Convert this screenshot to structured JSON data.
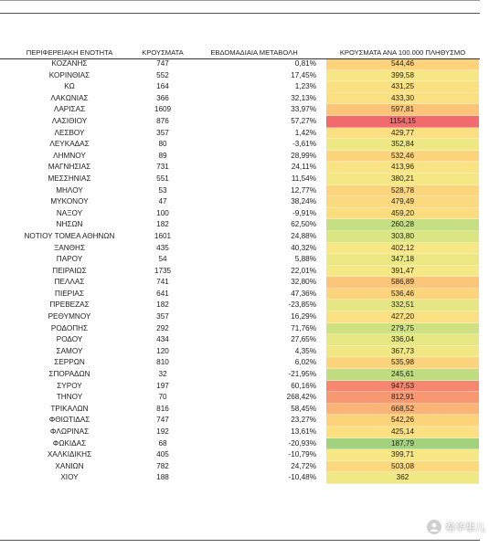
{
  "headers": {
    "region": "ΠΕΡΙΦΕΡΕΙΑΚΗ ΕΝΟΤΗΤΑ",
    "cases": "ΚΡΟΥΣΜΑΤΑ",
    "weekly_change": "ΕΒΔΟΜΑΔΙΑΙΑ ΜΕΤΑΒΟΛΗ",
    "per100k": "ΚΡΟΥΣΜΑΤΑ ΑΝΑ 100.000 ΠΛΗΘΥΣΜΟ"
  },
  "rows": [
    {
      "region": "ΚΟΖΑΝΗΣ",
      "cases": "747",
      "change": "0,81%",
      "per100k": "544,46",
      "color": "#fcd27b"
    },
    {
      "region": "ΚΟΡΙΝΘΙΑΣ",
      "cases": "552",
      "change": "17,45%",
      "per100k": "399,58",
      "color": "#f8e785"
    },
    {
      "region": "ΚΩ",
      "cases": "164",
      "change": "1,23%",
      "per100k": "431,25",
      "color": "#fae081"
    },
    {
      "region": "ΛΑΚΩΝΙΑΣ",
      "cases": "366",
      "change": "32,13%",
      "per100k": "433,30",
      "color": "#fae081"
    },
    {
      "region": "ΛΑΡΙΣΑΣ",
      "cases": "1609",
      "change": "33,97%",
      "per100k": "597,81",
      "color": "#fbc479"
    },
    {
      "region": "ΛΑΣΙΘΙΟΥ",
      "cases": "876",
      "change": "57,27%",
      "per100k": "1154,15",
      "color": "#f26b6c"
    },
    {
      "region": "ΛΕΣΒΟΥ",
      "cases": "357",
      "change": "1,42%",
      "per100k": "429,77",
      "color": "#fae081"
    },
    {
      "region": "ΛΕΥΚΑΔΑΣ",
      "cases": "80",
      "change": "-3,61%",
      "per100k": "352,84",
      "color": "#eee884"
    },
    {
      "region": "ΛΗΜΝΟΥ",
      "cases": "89",
      "change": "28,99%",
      "per100k": "532,46",
      "color": "#fcd47c"
    },
    {
      "region": "ΜΑΓΝΗΣΙΑΣ",
      "cases": "731",
      "change": "24,11%",
      "per100k": "413,96",
      "color": "#f9e483"
    },
    {
      "region": "ΜΕΣΣΗΝΙΑΣ",
      "cases": "551",
      "change": "11,54%",
      "per100k": "380,21",
      "color": "#f5e884"
    },
    {
      "region": "ΜΗΛΟΥ",
      "cases": "53",
      "change": "12,77%",
      "per100k": "528,78",
      "color": "#fcd47c"
    },
    {
      "region": "ΜΥΚΟΝΟΥ",
      "cases": "47",
      "change": "38,24%",
      "per100k": "479,49",
      "color": "#fbda7f"
    },
    {
      "region": "ΝΑΞΟΥ",
      "cases": "100",
      "change": "-9,91%",
      "per100k": "459,20",
      "color": "#fbdd80"
    },
    {
      "region": "ΝΗΣΩΝ",
      "cases": "182",
      "change": "62,50%",
      "per100k": "260,28",
      "color": "#c6df82"
    },
    {
      "region": "ΝΟΤΙΟΥ ΤΟΜΕΑ ΑΘΗΝΩΝ",
      "cases": "1601",
      "change": "24,88%",
      "per100k": "303,80",
      "color": "#dbe683"
    },
    {
      "region": "ΞΑΝΘΗΣ",
      "cases": "435",
      "change": "40,32%",
      "per100k": "402,12",
      "color": "#f8e785"
    },
    {
      "region": "ΠΑΡΟΥ",
      "cases": "54",
      "change": "5,88%",
      "per100k": "347,18",
      "color": "#ebe884"
    },
    {
      "region": "ΠΕΙΡΑΙΩΣ",
      "cases": "1735",
      "change": "22,01%",
      "per100k": "391,47",
      "color": "#f6e884"
    },
    {
      "region": "ΠΕΛΛΑΣ",
      "cases": "741",
      "change": "32,80%",
      "per100k": "586,89",
      "color": "#fbc679"
    },
    {
      "region": "ΠΙΕΡΙΑΣ",
      "cases": "641",
      "change": "47,36%",
      "per100k": "536,46",
      "color": "#fcd47c"
    },
    {
      "region": "ΠΡΕΒΕΖΑΣ",
      "cases": "182",
      "change": "-23,85%",
      "per100k": "332,51",
      "color": "#e6e784"
    },
    {
      "region": "ΡΕΘΥΜΝΟΥ",
      "cases": "357",
      "change": "16,29%",
      "per100k": "427,20",
      "color": "#fae081"
    },
    {
      "region": "ΡΟΔΟΠΗΣ",
      "cases": "292",
      "change": "71,76%",
      "per100k": "279,75",
      "color": "#cfe282"
    },
    {
      "region": "ΡΟΔΟΥ",
      "cases": "434",
      "change": "27,65%",
      "per100k": "336,04",
      "color": "#e7e784"
    },
    {
      "region": "ΣΑΜΟΥ",
      "cases": "120",
      "change": "4,35%",
      "per100k": "367,73",
      "color": "#f1e884"
    },
    {
      "region": "ΣΕΡΡΩΝ",
      "cases": "810",
      "change": "6,02%",
      "per100k": "535,98",
      "color": "#fcd47c"
    },
    {
      "region": "ΣΠΟΡΑΔΩΝ",
      "cases": "32",
      "change": "-21,95%",
      "per100k": "245,61",
      "color": "#bfdc81"
    },
    {
      "region": "ΣΥΡΟΥ",
      "cases": "197",
      "change": "60,16%",
      "per100k": "947,53",
      "color": "#f5866f"
    },
    {
      "region": "ΤΗΝΟΥ",
      "cases": "70",
      "change": "268,42%",
      "per100k": "812,91",
      "color": "#f89871"
    },
    {
      "region": "ΤΡΙΚΑΛΩΝ",
      "cases": "816",
      "change": "58,45%",
      "per100k": "668,52",
      "color": "#fab576"
    },
    {
      "region": "ΦΘΙΩΤΙΔΑΣ",
      "cases": "747",
      "change": "23,27%",
      "per100k": "542,26",
      "color": "#fcd27b"
    },
    {
      "region": "ΦΛΩΡΙΝΑΣ",
      "cases": "192",
      "change": "13,61%",
      "per100k": "425,14",
      "color": "#fae081"
    },
    {
      "region": "ΦΩΚΙΔΑΣ",
      "cases": "68",
      "change": "-20,93%",
      "per100k": "187,79",
      "color": "#a3d27e"
    },
    {
      "region": "ΧΑΛΚΙΔΙΚΗΣ",
      "cases": "405",
      "change": "-10,79%",
      "per100k": "399,71",
      "color": "#f8e785"
    },
    {
      "region": "ΧΑΝΙΩΝ",
      "cases": "782",
      "change": "24,72%",
      "per100k": "503,08",
      "color": "#fbd87e"
    },
    {
      "region": "ΧΙΟΥ",
      "cases": "188",
      "change": "-10,48%",
      "per100k": "362",
      "color": "#f0e884"
    }
  ],
  "watermark": {
    "text": "希华事儿",
    "icon": "person-icon"
  }
}
